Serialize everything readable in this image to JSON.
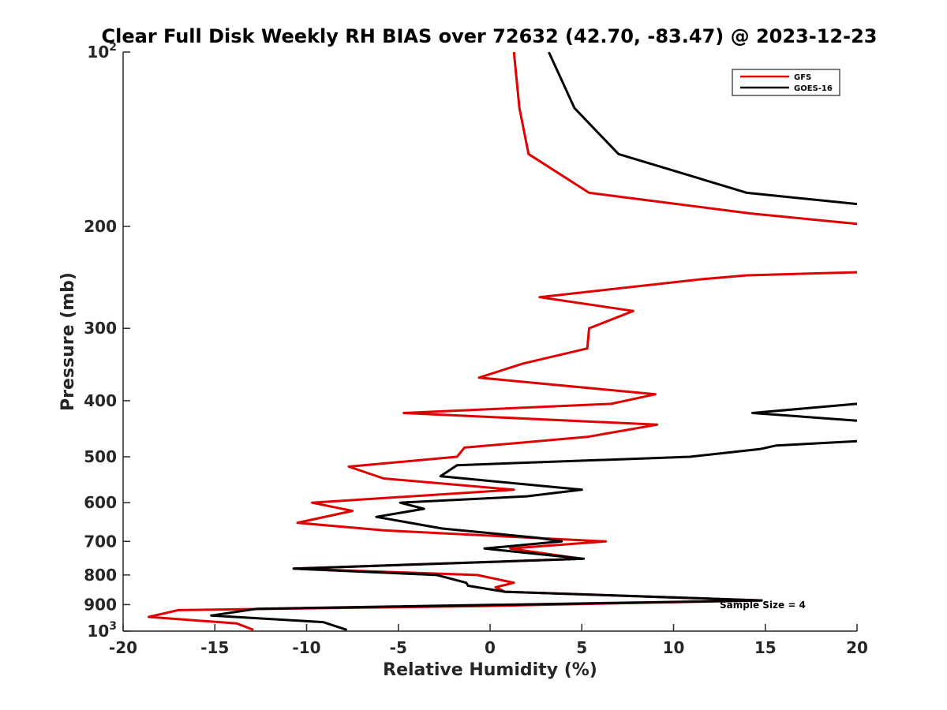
{
  "chart_data": {
    "type": "line",
    "title": "Clear Full Disk Weekly RH BIAS over 72632 (42.70, -83.47) @ 2023-12-23",
    "xlabel": "Relative Humidity (%)",
    "ylabel": "Pressure (mb)",
    "xlim": [
      -20,
      20
    ],
    "ylim": [
      100,
      1000
    ],
    "y_scale": "log",
    "y_reversed": true,
    "grid": false,
    "legend_position": "top-right",
    "x_ticks": [
      -20,
      -15,
      -10,
      -5,
      0,
      5,
      10,
      15,
      20
    ],
    "x_tick_labels": [
      "-20",
      "-15",
      "-10",
      "-5",
      "0",
      "5",
      "10",
      "15",
      "20"
    ],
    "y_ticks": [
      100,
      200,
      300,
      400,
      500,
      600,
      700,
      800,
      900,
      1000
    ],
    "y_tick_labels": [
      {
        "base": "10",
        "exp": "2"
      },
      {
        "base": "200",
        "exp": ""
      },
      {
        "base": "300",
        "exp": ""
      },
      {
        "base": "400",
        "exp": ""
      },
      {
        "base": "500",
        "exp": ""
      },
      {
        "base": "600",
        "exp": ""
      },
      {
        "base": "700",
        "exp": ""
      },
      {
        "base": "800",
        "exp": ""
      },
      {
        "base": "900",
        "exp": ""
      },
      {
        "base": "10",
        "exp": "3"
      }
    ],
    "annotation": "Sample Size = 4",
    "series": [
      {
        "name": "GFS",
        "color": "#e00000",
        "segments": [
          [
            [
              1.3,
              100
            ],
            [
              1.6,
              125
            ],
            [
              2.1,
              150
            ],
            [
              5.4,
              175
            ],
            [
              14.2,
              190
            ],
            [
              20,
              198
            ]
          ],
          [
            [
              20,
              240
            ],
            [
              14.0,
              243
            ],
            [
              11.4,
              247
            ],
            [
              2.7,
              265
            ],
            [
              7.8,
              280
            ],
            [
              5.4,
              300
            ],
            [
              5.3,
              325
            ],
            [
              1.8,
              345
            ],
            [
              -0.6,
              365
            ],
            [
              9.0,
              390
            ],
            [
              6.6,
              405
            ],
            [
              -4.7,
              420
            ],
            [
              9.1,
              440
            ],
            [
              5.3,
              462
            ],
            [
              -1.4,
              482
            ],
            [
              -1.8,
              500
            ],
            [
              -7.7,
              520
            ],
            [
              -5.8,
              545
            ],
            [
              1.3,
              570
            ],
            [
              -9.7,
              600
            ],
            [
              -7.5,
              620
            ],
            [
              -10.5,
              650
            ],
            [
              -5.8,
              670
            ],
            [
              6.3,
              700
            ],
            [
              1.1,
              720
            ],
            [
              5.0,
              750
            ],
            [
              -10.7,
              780
            ],
            [
              -0.7,
              800
            ],
            [
              1.3,
              825
            ],
            [
              0.3,
              840
            ],
            [
              0.8,
              855
            ],
            [
              14.8,
              885
            ],
            [
              -0.4,
              905
            ],
            [
              -17.0,
              920
            ],
            [
              -18.6,
              945
            ],
            [
              -13.8,
              970
            ],
            [
              -12.9,
              995
            ]
          ]
        ]
      },
      {
        "name": "GOES-16",
        "color": "#000000",
        "segments": [
          [
            [
              3.2,
              100
            ],
            [
              4.6,
              125
            ],
            [
              7.0,
              150
            ],
            [
              14.0,
              175
            ],
            [
              20,
              183
            ]
          ],
          [
            [
              20,
              405
            ],
            [
              14.3,
              420
            ],
            [
              20,
              433
            ]
          ],
          [
            [
              20,
              470
            ],
            [
              15.6,
              478
            ],
            [
              14.7,
              485
            ],
            [
              10.9,
              500
            ],
            [
              -1.8,
              517
            ],
            [
              -2.7,
              540
            ],
            [
              5.0,
              570
            ],
            [
              2.0,
              585
            ],
            [
              -4.9,
              600
            ],
            [
              -3.6,
              615
            ],
            [
              -6.2,
              635
            ],
            [
              -2.6,
              665
            ],
            [
              2.6,
              690
            ],
            [
              3.9,
              700
            ],
            [
              -0.3,
              720
            ],
            [
              5.1,
              750
            ],
            [
              -10.7,
              780
            ],
            [
              -2.9,
              800
            ],
            [
              -1.3,
              825
            ],
            [
              -1.2,
              835
            ],
            [
              0.8,
              855
            ],
            [
              14.8,
              885
            ],
            [
              -12.7,
              915
            ],
            [
              -15.2,
              940
            ],
            [
              -9.1,
              965
            ],
            [
              -7.8,
              995
            ]
          ]
        ]
      }
    ]
  }
}
